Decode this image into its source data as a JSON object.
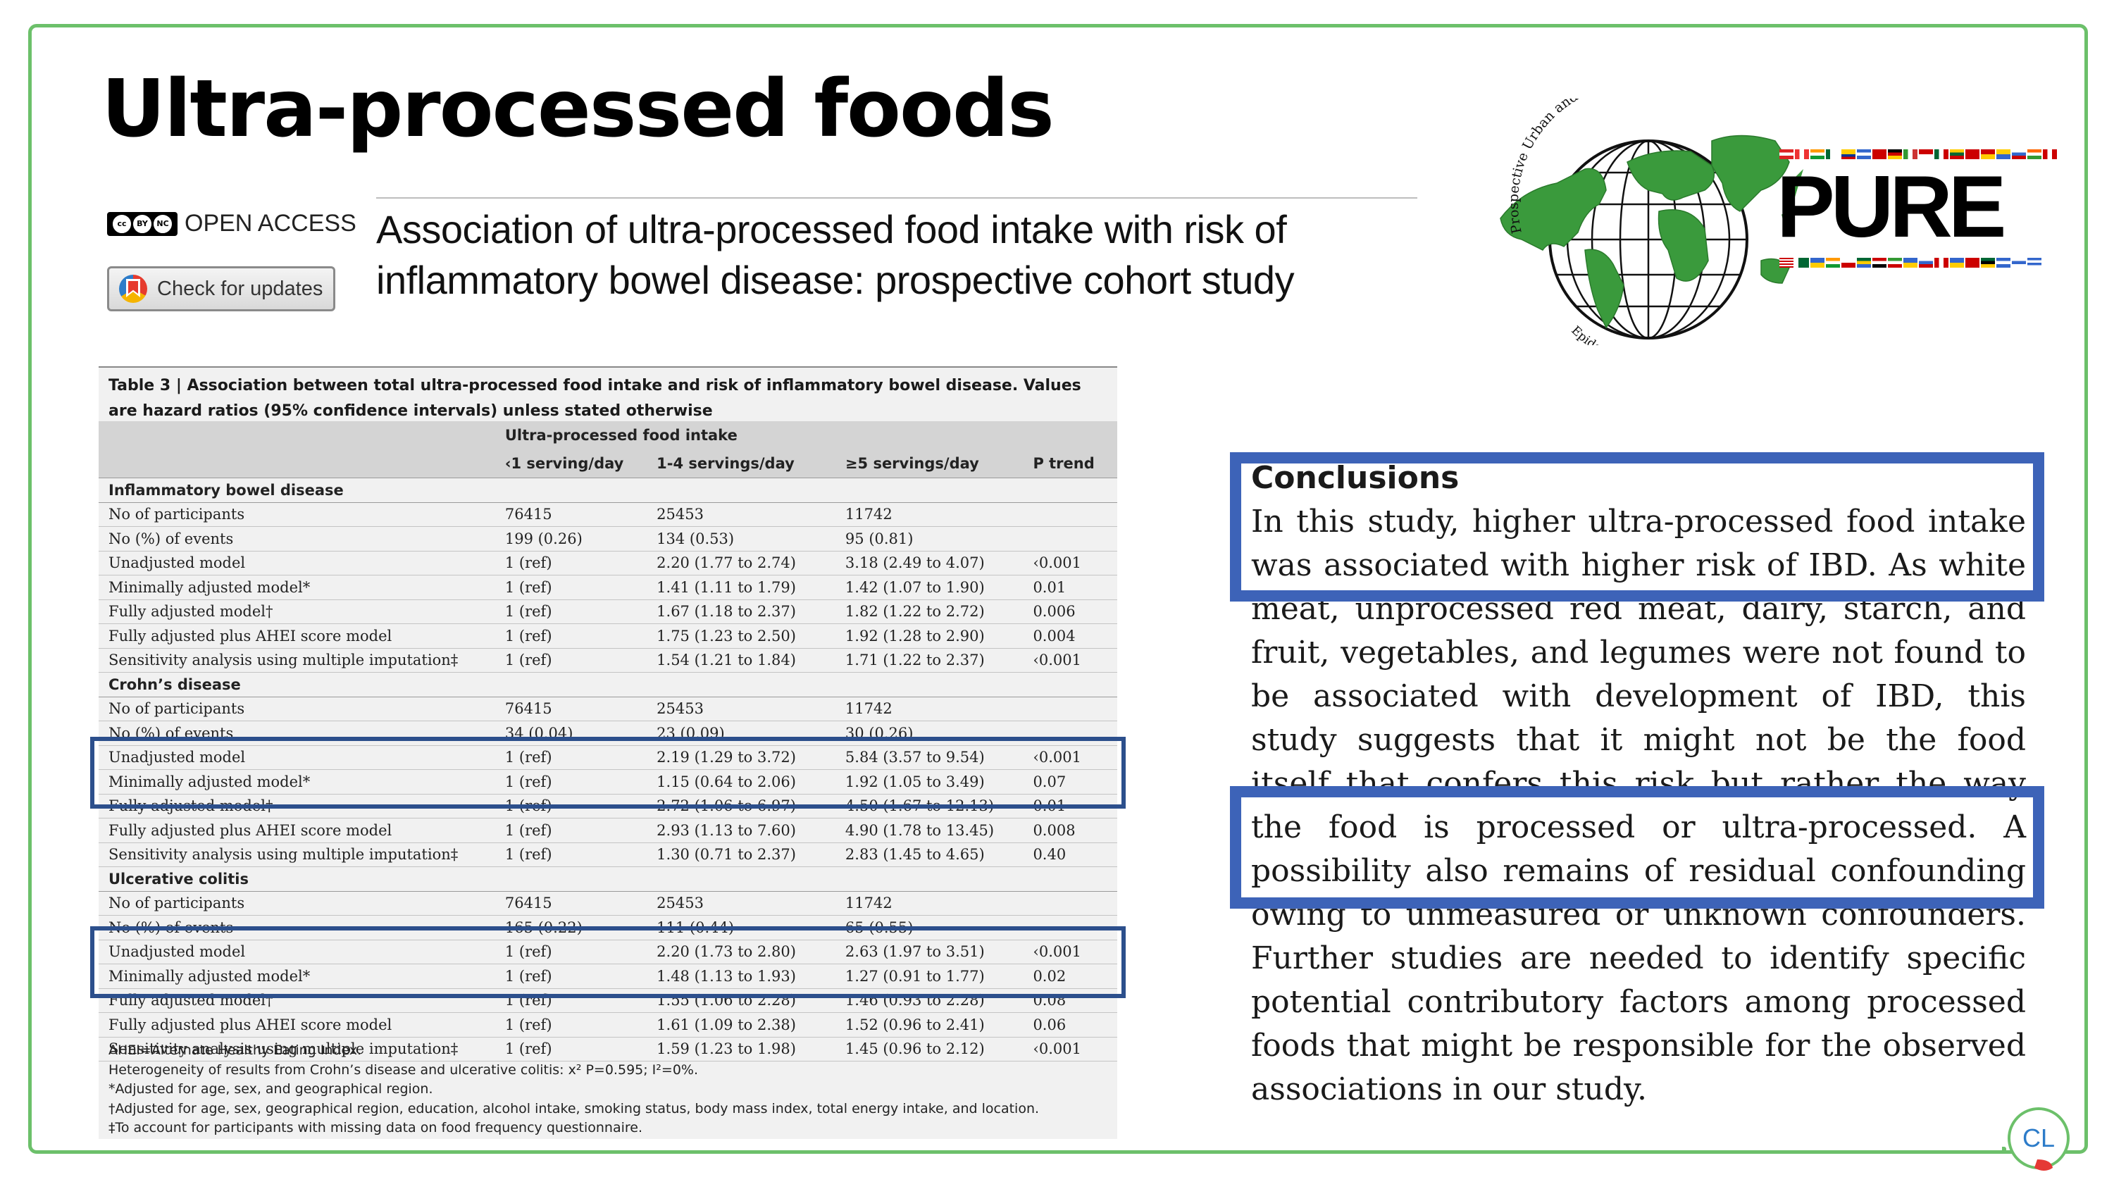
{
  "slide": {
    "title": "Ultra-processed foods"
  },
  "article": {
    "open_access_label": "OPEN ACCESS",
    "cc_badge": {
      "by": "BY",
      "nc": "NC"
    },
    "check_updates_label": "Check for updates",
    "title_line1": "Association of ultra-processed food intake with risk of",
    "title_line2": "inflammatory bowel disease: prospective cohort study"
  },
  "logo": {
    "name": "PURE",
    "arc_top": "Prospective Urban and Rural",
    "arc_bottom": "Epidemiological Study",
    "globe_color": "#3a9a3c"
  },
  "table": {
    "caption": "Table 3 | Association between total ultra-processed food intake and risk of inflammatory bowel disease. Values are hazard ratios (95% confidence intervals) unless stated otherwise",
    "group_header": "Ultra-processed food intake",
    "columns": [
      "‹1 serving/day",
      "1-4 servings/day",
      "≥5 servings/day",
      "P trend"
    ],
    "sections": [
      {
        "title": "Inflammatory bowel disease",
        "rows": [
          [
            "No of participants",
            "76415",
            "25453",
            "11742",
            ""
          ],
          [
            "No (%) of events",
            "199 (0.26)",
            "134 (0.53)",
            "95 (0.81)",
            ""
          ],
          [
            "Unadjusted model",
            "1 (ref)",
            "2.20 (1.77 to 2.74)",
            "3.18 (2.49 to 4.07)",
            "‹0.001"
          ],
          [
            "Minimally adjusted model*",
            "1 (ref)",
            "1.41 (1.11 to 1.79)",
            "1.42 (1.07 to 1.90)",
            "0.01"
          ],
          [
            "Fully adjusted model†",
            "1 (ref)",
            "1.67 (1.18 to 2.37)",
            "1.82 (1.22 to 2.72)",
            "0.006"
          ],
          [
            "Fully adjusted plus AHEI score model",
            "1 (ref)",
            "1.75 (1.23 to 2.50)",
            "1.92 (1.28 to 2.90)",
            "0.004"
          ],
          [
            "Sensitivity analysis using multiple imputation‡",
            "1 (ref)",
            "1.54 (1.21 to 1.84)",
            "1.71 (1.22 to 2.37)",
            "‹0.001"
          ]
        ]
      },
      {
        "title": "Crohn’s disease",
        "rows": [
          [
            "No of participants",
            "76415",
            "25453",
            "11742",
            ""
          ],
          [
            "No (%) of events",
            "34 (0.04)",
            "23 (0.09)",
            "30 (0.26)",
            ""
          ],
          [
            "Unadjusted model",
            "1 (ref)",
            "2.19 (1.29 to 3.72)",
            "5.84 (3.57 to 9.54)",
            "‹0.001"
          ],
          [
            "Minimally adjusted model*",
            "1 (ref)",
            "1.15 (0.64 to 2.06)",
            "1.92 (1.05 to 3.49)",
            "0.07"
          ],
          [
            "Fully adjusted model†",
            "1 (ref)",
            "2.72 (1.06 to 6.97)",
            "4.50 (1.67 to 12.13)",
            "0.01"
          ],
          [
            "Fully adjusted plus AHEI score model",
            "1 (ref)",
            "2.93 (1.13 to 7.60)",
            "4.90 (1.78 to 13.45)",
            "0.008"
          ],
          [
            "Sensitivity analysis using multiple imputation‡",
            "1 (ref)",
            "1.30 (0.71 to 2.37)",
            "2.83 (1.45 to 4.65)",
            "0.40"
          ]
        ]
      },
      {
        "title": "Ulcerative colitis",
        "rows": [
          [
            "No of participants",
            "76415",
            "25453",
            "11742",
            ""
          ],
          [
            "No (%) of events",
            "165 (0.22)",
            "111 (0.44)",
            "65 (0.55)",
            ""
          ],
          [
            "Unadjusted model",
            "1 (ref)",
            "2.20 (1.73 to 2.80)",
            "2.63 (1.97 to 3.51)",
            "‹0.001"
          ],
          [
            "Minimally adjusted model*",
            "1 (ref)",
            "1.48 (1.13 to 1.93)",
            "1.27 (0.91 to 1.77)",
            "0.02"
          ],
          [
            "Fully adjusted model†",
            "1 (ref)",
            "1.55 (1.06 to 2.28)",
            "1.46 (0.93 to 2.28)",
            "0.08"
          ],
          [
            "Fully adjusted plus AHEI score model",
            "1 (ref)",
            "1.61 (1.09 to 2.38)",
            "1.52 (0.96 to 2.41)",
            "0.06"
          ],
          [
            "Sensitivity analysis using multiple imputation‡",
            "1 (ref)",
            "1.59 (1.23 to 1.98)",
            "1.45 (0.96 to 2.12)",
            "‹0.001"
          ]
        ]
      }
    ],
    "notes": [
      "AHEI=Alternate Healthy Eating Index.",
      "Heterogeneity of results from Crohn’s disease and ulcerative colitis: x² P=0.595; I²=0%.",
      "*Adjusted for age, sex, and geographical region.",
      "†Adjusted for age, sex, geographical region, education, alcohol intake, smoking status, body mass index, total energy intake, and location.",
      "‡To account for participants with missing data on food frequency questionnaire."
    ],
    "highlight_color": "#2c4f8c"
  },
  "conclusions": {
    "heading": "Conclusions",
    "paragraph": "In this study, higher ultra-processed food intake was associated with higher risk of IBD. As white meat, unprocessed red meat, dairy, starch, and fruit, vegetables, and legumes were not found to be associated with development of IBD, this study suggests that it might not be the food itself that confers this risk but rather the way the food is processed or ultra-processed. A possibility also remains of residual confounding owing to unmeasured or unknown confounders. Further studies are needed to identify specific potential contributory factors among processed foods that might be responsible for the observed associations in our study.",
    "highlight_color": "#3d63b8"
  },
  "footer_logo": {
    "text": "CL"
  }
}
